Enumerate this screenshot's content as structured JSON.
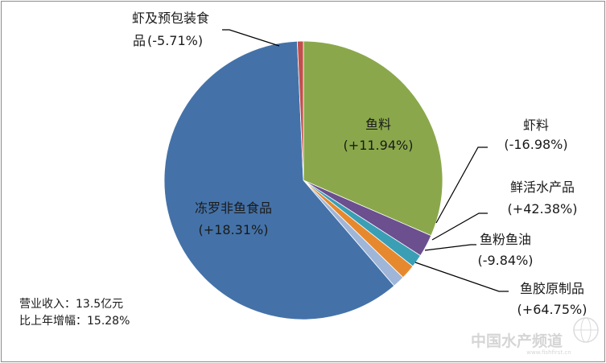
{
  "chart_data": {
    "type": "pie",
    "title": "",
    "slices": [
      {
        "name": "鱼料",
        "change": "(+11.94%)",
        "value": 31.5,
        "color": "#8aa84b"
      },
      {
        "name": "虾料",
        "change": "(-16.98%)",
        "value": 2.6,
        "color": "#6b4f8f"
      },
      {
        "name": "鲜活水产品",
        "change": "(+42.38%)",
        "value": 1.5,
        "color": "#3a9fb5"
      },
      {
        "name": "鱼粉鱼油",
        "change": "(-9.84%)",
        "value": 1.7,
        "color": "#e6892e"
      },
      {
        "name": "鱼胶原制品",
        "change": "(+64.75%)",
        "value": 1.4,
        "color": "#9fb6d9"
      },
      {
        "name": "冻罗非鱼食品",
        "change": "(+18.31%)",
        "value": 60.6,
        "color": "#4472a8"
      },
      {
        "name": "虾及预包装食品",
        "name_line1": "虾及预包装食",
        "name_line2": "品",
        "change": "(-5.71%)",
        "value": 0.7,
        "color": "#c0504d"
      }
    ],
    "summary": {
      "revenue": "营业收入：13.5亿元",
      "growth": "比上年增幅：15.28%"
    }
  },
  "watermark": {
    "text": "中国水产频道",
    "subtext": "www.fishfirst.cn"
  }
}
